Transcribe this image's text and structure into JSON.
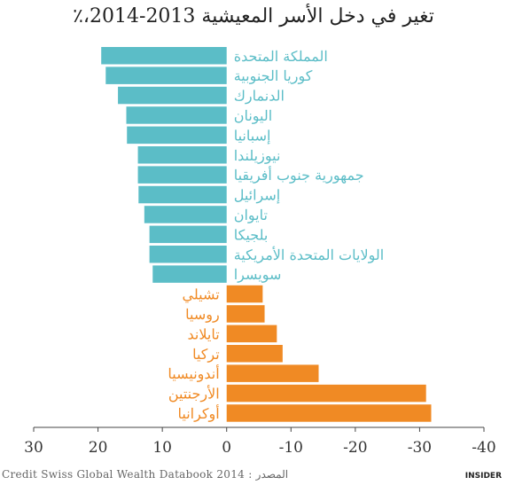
{
  "chart_data": {
    "type": "bar",
    "orientation": "horizontal",
    "title": "تغير في دخل الأسر المعيشية 2013-2014،٪",
    "source": "Credit Swiss Global Wealth Databook 2014 : المصدر",
    "brand": "INSIDER",
    "xlim": [
      30,
      -40
    ],
    "xticks": [
      30,
      20,
      10,
      0,
      -10,
      -20,
      -30,
      -40
    ],
    "xtick_labels": [
      "30",
      "20",
      "10",
      "0",
      "-10",
      "-20",
      "-30",
      "-40"
    ],
    "colors": {
      "positive": "#5bbdc7",
      "negative": "#f08a24"
    },
    "categories": [
      "المملكة المتحدة",
      "كوريا الجنوبية",
      "الدنمارك",
      "اليونان",
      "إسبانيا",
      "نيوزيلندا",
      "جمهورية جنوب أفريقيا",
      "إسرائيل",
      "تايوان",
      "بلجيكا",
      "الولايات المتحدة الأمريكية",
      "سويسرا",
      "تشيلي",
      "روسيا",
      "تايلاند",
      "تركيا",
      "أندونيسيا",
      "الأرجنتين",
      "أوكرانيا"
    ],
    "values": [
      19.5,
      18.8,
      16.9,
      15.6,
      15.5,
      13.8,
      13.8,
      13.7,
      12.8,
      12.0,
      12.0,
      11.5,
      -5.6,
      -5.9,
      -7.8,
      -8.7,
      -14.3,
      -31.0,
      -31.8
    ]
  }
}
